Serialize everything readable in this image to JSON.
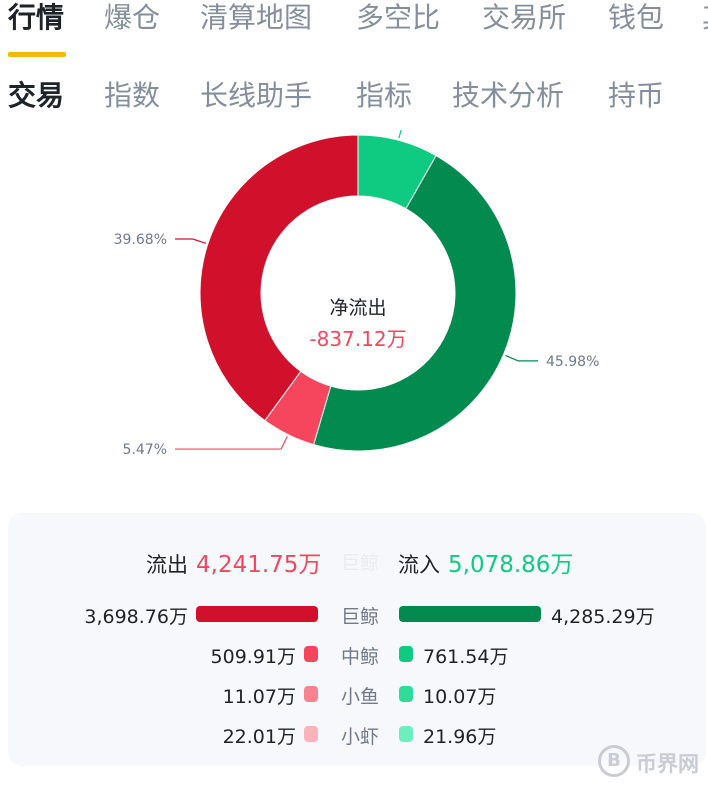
{
  "tabs_primary": [
    "行情",
    "爆仓",
    "清算地图",
    "多空比",
    "交易所",
    "钱包",
    "其"
  ],
  "tabs_secondary": [
    "交易",
    "指数",
    "长线助手",
    "指标",
    "技术分析",
    "持币"
  ],
  "chart": {
    "center_label": "净流出",
    "center_value": "-837.12万"
  },
  "chart_data": {
    "type": "pie",
    "slices": [
      {
        "label": "8.17%",
        "value": 8.17,
        "color": "#0ecb81"
      },
      {
        "label": "45.98%",
        "value": 45.98,
        "color": "#028a4f"
      },
      {
        "label": "5.47%",
        "value": 5.47,
        "color": "#f6465d"
      },
      {
        "label": "39.68%",
        "value": 39.68,
        "color": "#d1112c"
      }
    ]
  },
  "flow": {
    "out_label": "流出",
    "out_value": "4,241.75万",
    "ghost_label": "巨鲸",
    "in_label": "流入",
    "in_value": "5,078.86万"
  },
  "rows": [
    {
      "category": "巨鲸",
      "out": "3,698.76万",
      "in": "4,285.29万",
      "out_num": 3698.76,
      "in_num": 4285.29,
      "out_color": "#d1112c",
      "in_color": "#028a4f"
    },
    {
      "category": "中鲸",
      "out": "509.91万",
      "in": "761.54万",
      "out_num": 509.91,
      "in_num": 761.54,
      "out_color": "#f6465d",
      "in_color": "#0ecb81"
    },
    {
      "category": "小鱼",
      "out": "11.07万",
      "in": "10.07万",
      "out_num": 11.07,
      "in_num": 10.07,
      "out_color": "#f7838f",
      "in_color": "#2fdc98"
    },
    {
      "category": "小虾",
      "out": "22.01万",
      "in": "21.96万",
      "out_num": 22.01,
      "in_num": 21.96,
      "out_color": "#fbb3ba",
      "in_color": "#6feebd"
    }
  ],
  "watermark": {
    "coin": "B",
    "text": "币界网"
  }
}
